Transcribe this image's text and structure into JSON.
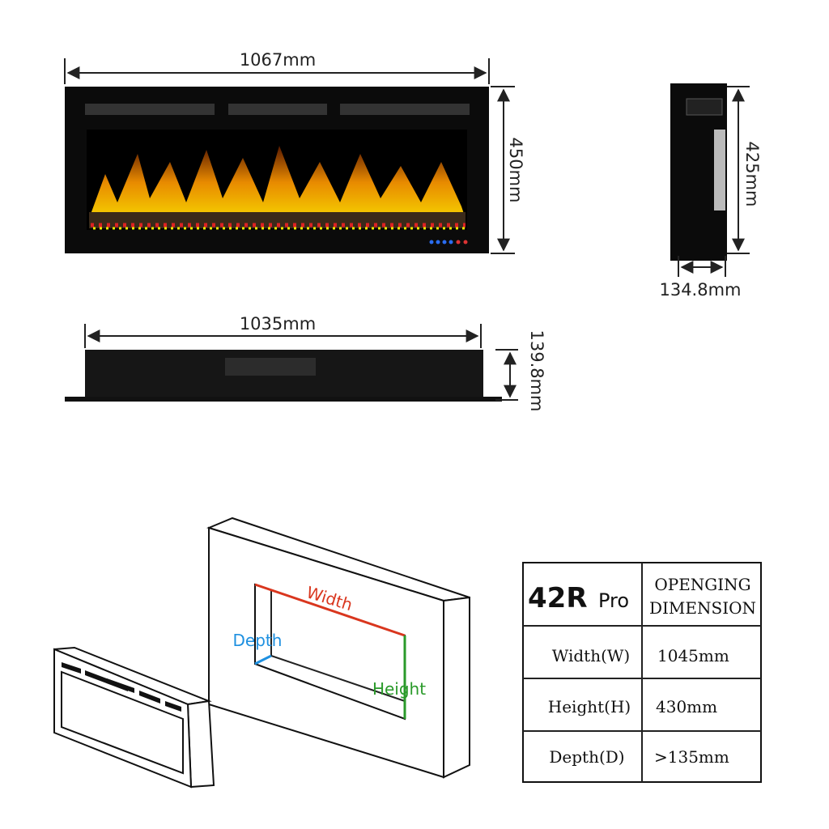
{
  "front_view": {
    "width": "1067mm",
    "height": "450mm"
  },
  "side_view": {
    "height": "425mm",
    "depth": "134.8mm"
  },
  "bottom_view": {
    "width": "1035mm",
    "depth": "139.8mm"
  },
  "opening_diagram": {
    "width": "Width",
    "depth": "Depth",
    "height": "Height"
  },
  "table": {
    "model": "42R",
    "variant": "Pro",
    "heading": [
      "OPENGING",
      "DIMENSION"
    ],
    "rows": [
      [
        "Width(W)",
        "1045mm"
      ],
      [
        "Height(H)",
        "430mm"
      ],
      [
        "Depth(D)",
        ">135mm"
      ]
    ]
  }
}
